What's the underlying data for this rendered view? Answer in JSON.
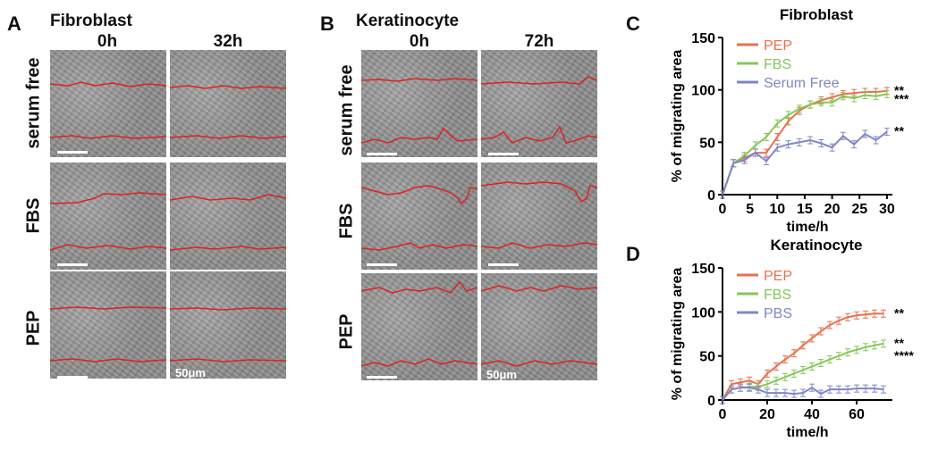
{
  "panels": {
    "A": {
      "letter": "A",
      "title": "Fibroblast",
      "cols": [
        "0h",
        "32h"
      ],
      "rows": [
        "serum free",
        "FBS",
        "PEP"
      ],
      "scale": "50μm"
    },
    "B": {
      "letter": "B",
      "title": "Keratinocyte",
      "cols": [
        "0h",
        "72h"
      ],
      "rows": [
        "serum free",
        "FBS",
        "PEP"
      ],
      "scale": "50μm"
    },
    "C": {
      "letter": "C"
    },
    "D": {
      "letter": "D"
    }
  },
  "colors": {
    "PEP": "#e8704f",
    "FBS": "#86c65a",
    "other": "#7f86c6",
    "wound_edge": "#e02020"
  },
  "chart_data": [
    {
      "type": "line",
      "title": "Fibroblast",
      "xlabel": "time/h",
      "ylabel": "% of migrating area",
      "xlim": [
        0,
        31
      ],
      "ylim": [
        0,
        150
      ],
      "xticks": [
        0,
        5,
        10,
        15,
        20,
        25,
        30
      ],
      "yticks": [
        0,
        50,
        100,
        150
      ],
      "legend": "top-left",
      "series": [
        {
          "name": "PEP",
          "x": [
            0,
            2,
            4,
            6,
            8,
            10,
            12,
            14,
            16,
            18,
            20,
            22,
            24,
            26,
            28,
            30
          ],
          "values": [
            0,
            30,
            35,
            40,
            40,
            55,
            70,
            80,
            86,
            90,
            93,
            96,
            97,
            98,
            98,
            99
          ],
          "significance": "**"
        },
        {
          "name": "FBS",
          "x": [
            0,
            2,
            4,
            6,
            8,
            10,
            12,
            14,
            16,
            18,
            20,
            22,
            24,
            26,
            28,
            30
          ],
          "values": [
            0,
            30,
            37,
            47,
            55,
            68,
            76,
            82,
            86,
            88,
            88,
            94,
            92,
            95,
            94,
            96
          ],
          "significance": "***"
        },
        {
          "name": "Serum Free",
          "x": [
            0,
            2,
            4,
            6,
            8,
            10,
            12,
            14,
            16,
            18,
            20,
            22,
            24,
            26,
            28,
            30
          ],
          "values": [
            0,
            30,
            33,
            40,
            32,
            45,
            48,
            50,
            52,
            49,
            45,
            56,
            48,
            58,
            52,
            60
          ],
          "significance": "**"
        }
      ]
    },
    {
      "type": "line",
      "title": "Keratinocyte",
      "xlabel": "time/h",
      "ylabel": "% of migrating area",
      "xlim": [
        0,
        76
      ],
      "ylim": [
        0,
        150
      ],
      "xticks": [
        0,
        20,
        40,
        60
      ],
      "yticks": [
        0,
        50,
        100,
        150
      ],
      "legend": "top-left",
      "series": [
        {
          "name": "PEP",
          "x": [
            0,
            4,
            8,
            12,
            16,
            20,
            24,
            28,
            32,
            36,
            40,
            44,
            48,
            52,
            56,
            60,
            64,
            68,
            72
          ],
          "values": [
            0,
            18,
            20,
            22,
            18,
            30,
            38,
            46,
            53,
            62,
            70,
            78,
            85,
            90,
            94,
            96,
            97,
            98,
            98
          ],
          "significance": "**"
        },
        {
          "name": "FBS",
          "x": [
            0,
            4,
            8,
            12,
            16,
            20,
            24,
            28,
            32,
            36,
            40,
            44,
            48,
            52,
            56,
            60,
            64,
            68,
            72
          ],
          "values": [
            0,
            12,
            14,
            15,
            15,
            18,
            22,
            26,
            30,
            34,
            38,
            42,
            46,
            50,
            54,
            57,
            60,
            62,
            64
          ],
          "significance": "**\n****"
        },
        {
          "name": "PBS",
          "x": [
            0,
            4,
            8,
            12,
            16,
            20,
            24,
            28,
            32,
            36,
            40,
            44,
            48,
            52,
            56,
            60,
            64,
            68,
            72
          ],
          "values": [
            0,
            12,
            14,
            14,
            12,
            8,
            8,
            8,
            7,
            8,
            14,
            7,
            12,
            12,
            12,
            13,
            13,
            13,
            12
          ],
          "significance": ""
        }
      ]
    }
  ]
}
